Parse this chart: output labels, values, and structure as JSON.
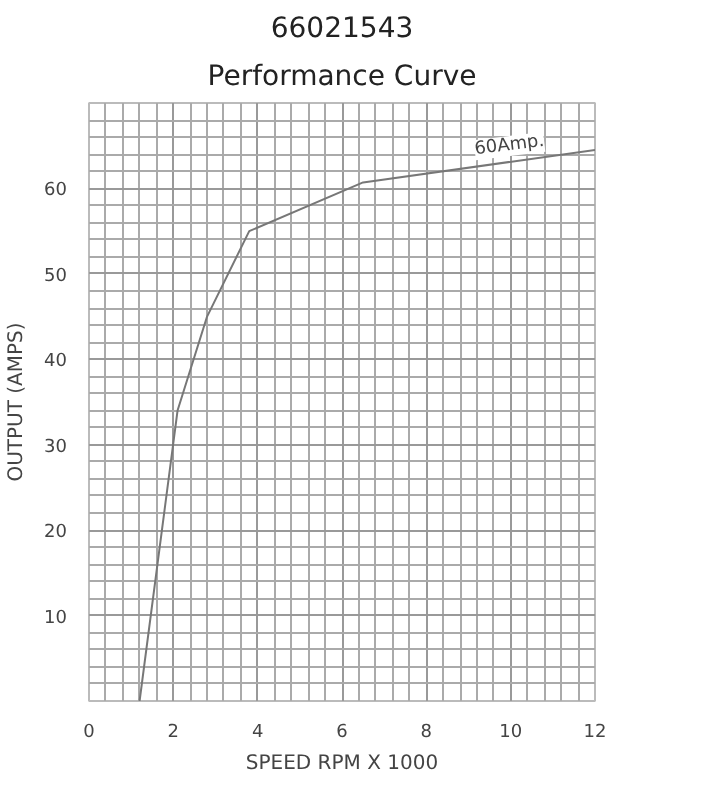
{
  "chart_data": {
    "type": "line",
    "title": "66021543",
    "subtitle": "Performance Curve",
    "xlabel": "SPEED RPM X 1000",
    "ylabel": "OUTPUT (AMPS)",
    "x": [
      1.2,
      2.1,
      2.8,
      3.8,
      6.5,
      12
    ],
    "series": [
      {
        "color": "#777777",
        "values": [
          0,
          34,
          45,
          55,
          60.7,
          64.5
        ]
      }
    ],
    "xlim": [
      0,
      12
    ],
    "ylim": [
      0,
      70
    ],
    "xticks": [
      0,
      2,
      4,
      6,
      8,
      10,
      12
    ],
    "yticks": [
      10,
      20,
      30,
      40,
      50,
      60
    ],
    "annotations": [
      {
        "text": "60Amp.",
        "x": 10,
        "y": 63.1
      }
    ],
    "grid": true,
    "marker": "none",
    "line_style": "solid"
  }
}
